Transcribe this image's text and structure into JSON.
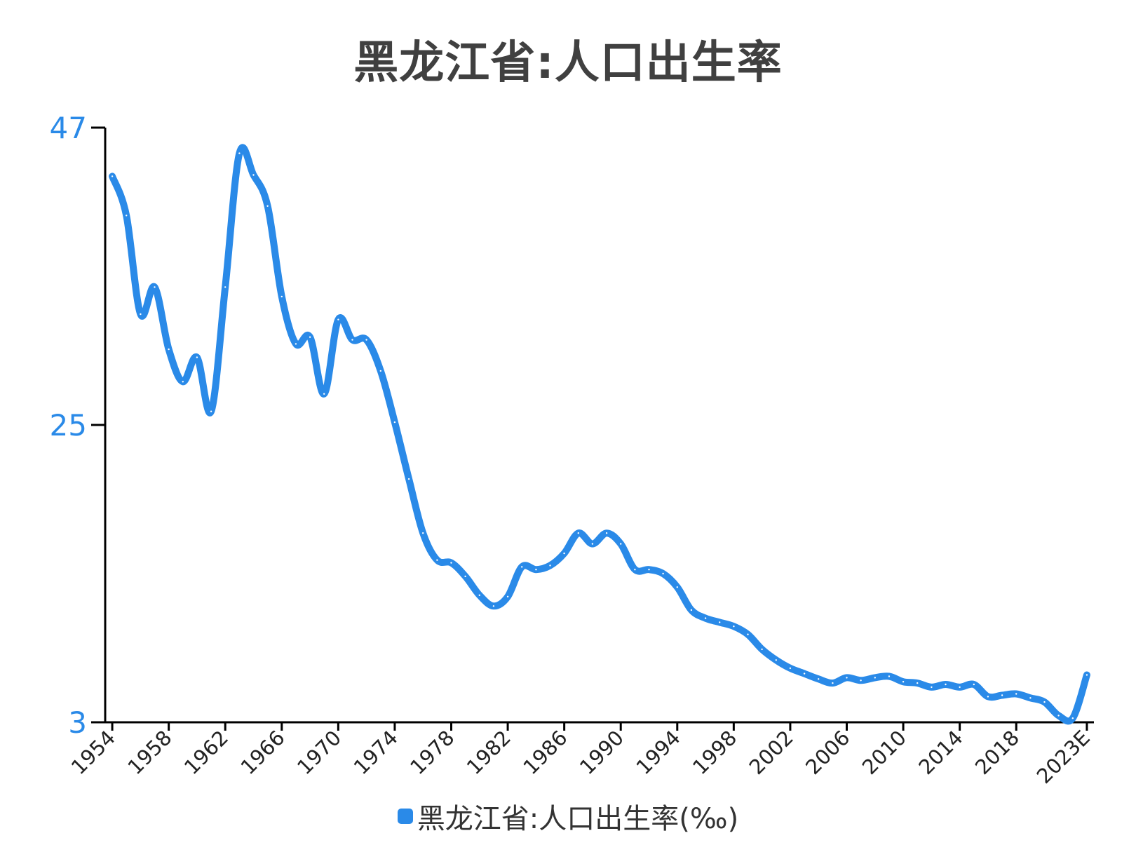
{
  "chart_data": {
    "type": "line",
    "title": "黑龙江省:人口出生率",
    "xlabel": "",
    "ylabel": "",
    "x": [
      "1954",
      "1955",
      "1956",
      "1957",
      "1958",
      "1959",
      "1960",
      "1961",
      "1962",
      "1963",
      "1964",
      "1965",
      "1966",
      "1967",
      "1968",
      "1969",
      "1970",
      "1971",
      "1972",
      "1973",
      "1974",
      "1975",
      "1976",
      "1977",
      "1978",
      "1979",
      "1980",
      "1981",
      "1982",
      "1983",
      "1984",
      "1985",
      "1986",
      "1987",
      "1988",
      "1989",
      "1990",
      "1991",
      "1992",
      "1993",
      "1994",
      "1995",
      "1996",
      "1997",
      "1998",
      "1999",
      "2000",
      "2001",
      "2002",
      "2003",
      "2004",
      "2005",
      "2006",
      "2007",
      "2008",
      "2009",
      "2010",
      "2011",
      "2012",
      "2013",
      "2014",
      "2015",
      "2016",
      "2017",
      "2018",
      "2019",
      "2020",
      "2021",
      "2022",
      "2023E"
    ],
    "xticks": [
      "1954",
      "1958",
      "1962",
      "1966",
      "1970",
      "1974",
      "1978",
      "1982",
      "1986",
      "1990",
      "1994",
      "1998",
      "2002",
      "2006",
      "2010",
      "2014",
      "2018",
      "2023E"
    ],
    "yticks": [
      3,
      25,
      47
    ],
    "ylim": [
      3,
      47
    ],
    "series": [
      {
        "name": "黑龙江省:人口出生率(‰)",
        "color": "#2a8ae8",
        "values": [
          43.4,
          40.5,
          33.2,
          35.2,
          30.6,
          28.2,
          30.0,
          26.0,
          35.2,
          45.1,
          43.5,
          41.2,
          34.5,
          31.0,
          31.5,
          27.3,
          32.8,
          31.3,
          31.3,
          29.0,
          25.2,
          21.0,
          17.0,
          15.0,
          14.8,
          13.8,
          12.4,
          11.6,
          12.3,
          14.5,
          14.3,
          14.6,
          15.5,
          17.0,
          16.2,
          17.0,
          16.2,
          14.3,
          14.3,
          14.0,
          13.0,
          11.3,
          10.7,
          10.4,
          10.1,
          9.5,
          8.4,
          7.6,
          7.0,
          6.6,
          6.2,
          5.9,
          6.3,
          6.1,
          6.3,
          6.4,
          6.0,
          5.9,
          5.6,
          5.8,
          5.6,
          5.8,
          4.9,
          5.0,
          5.1,
          4.8,
          4.5,
          3.5,
          3.3,
          6.5
        ]
      }
    ]
  },
  "legend": {
    "label": "黑龙江省:人口出生率(‰)"
  }
}
